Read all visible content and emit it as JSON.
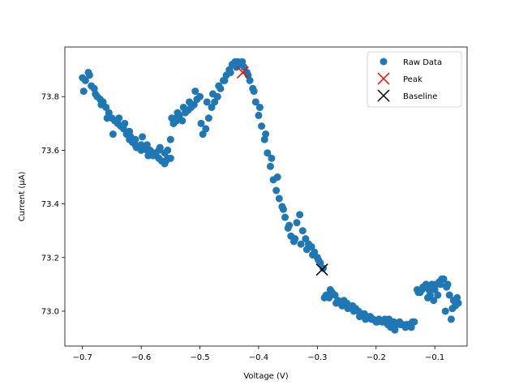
{
  "colors": {
    "raw": "#1f77b4",
    "peak": "#ff0000",
    "baseline": "#000000"
  },
  "chart_data": {
    "type": "scatter",
    "xlabel": "Voltage (V)",
    "ylabel": "Current (µA)",
    "xlim": [
      -0.73,
      -0.045
    ],
    "ylim": [
      72.87,
      73.985
    ],
    "xticks": [
      -0.7,
      -0.6,
      -0.5,
      -0.4,
      -0.3,
      -0.2,
      -0.1
    ],
    "xtick_labels": [
      "−0.7",
      "−0.6",
      "−0.5",
      "−0.4",
      "−0.3",
      "−0.2",
      "−0.1"
    ],
    "yticks": [
      73.0,
      73.2,
      73.4,
      73.6,
      73.8
    ],
    "ytick_labels": [
      "73.0",
      "73.2",
      "73.4",
      "73.6",
      "73.8"
    ],
    "grid": false,
    "legend_position": "top-right",
    "series": [
      {
        "name": "Raw Data",
        "marker": "circle",
        "x": [
          -0.7,
          -0.695,
          -0.69,
          -0.685,
          -0.68,
          -0.675,
          -0.67,
          -0.665,
          -0.66,
          -0.655,
          -0.65,
          -0.645,
          -0.64,
          -0.635,
          -0.63,
          -0.625,
          -0.62,
          -0.615,
          -0.61,
          -0.605,
          -0.6,
          -0.595,
          -0.59,
          -0.585,
          -0.58,
          -0.575,
          -0.57,
          -0.565,
          -0.56,
          -0.555,
          -0.55,
          -0.545,
          -0.54,
          -0.535,
          -0.53,
          -0.525,
          -0.52,
          -0.515,
          -0.51,
          -0.505,
          -0.5,
          -0.495,
          -0.49,
          -0.485,
          -0.48,
          -0.475,
          -0.47,
          -0.465,
          -0.46,
          -0.455,
          -0.45,
          -0.445,
          -0.44,
          -0.435,
          -0.43,
          -0.425,
          -0.42,
          -0.415,
          -0.41,
          -0.405,
          -0.4,
          -0.395,
          -0.39,
          -0.385,
          -0.38,
          -0.375,
          -0.37,
          -0.365,
          -0.36,
          -0.355,
          -0.35,
          -0.345,
          -0.34,
          -0.335,
          -0.33,
          -0.325,
          -0.32,
          -0.315,
          -0.31,
          -0.305,
          -0.3,
          -0.295,
          -0.29,
          -0.285,
          -0.28,
          -0.275,
          -0.27,
          -0.265,
          -0.26,
          -0.255,
          -0.25,
          -0.245,
          -0.24,
          -0.235,
          -0.23,
          -0.225,
          -0.22,
          -0.215,
          -0.21,
          -0.205,
          -0.2,
          -0.195,
          -0.19,
          -0.185,
          -0.18,
          -0.175,
          -0.17,
          -0.165,
          -0.16,
          -0.155,
          -0.15,
          -0.145,
          -0.14,
          -0.135,
          -0.13,
          -0.125,
          -0.12,
          -0.115,
          -0.11,
          -0.105,
          -0.1,
          -0.095,
          -0.09,
          -0.085,
          -0.08,
          -0.075,
          -0.07,
          -0.065,
          -0.06,
          -0.698,
          -0.688,
          -0.678,
          -0.668,
          -0.658,
          -0.648,
          -0.638,
          -0.628,
          -0.618,
          -0.608,
          -0.598,
          -0.588,
          -0.578,
          -0.568,
          -0.558,
          -0.548,
          -0.538,
          -0.528,
          -0.518,
          -0.508,
          -0.498,
          -0.488,
          -0.478,
          -0.468,
          -0.458,
          -0.448,
          -0.438,
          -0.428,
          -0.418,
          -0.408,
          -0.398,
          -0.388,
          -0.378,
          -0.368,
          -0.358,
          -0.348,
          -0.338,
          -0.328,
          -0.318,
          -0.308,
          -0.298,
          -0.288,
          -0.278,
          -0.268,
          -0.258,
          -0.248,
          -0.238,
          -0.228,
          -0.218,
          -0.208,
          -0.198,
          -0.188,
          -0.178,
          -0.168,
          -0.158,
          -0.148,
          -0.138,
          -0.128,
          -0.118,
          -0.108,
          -0.098,
          -0.088,
          -0.078,
          -0.068,
          -0.062,
          -0.072,
          -0.082,
          -0.092,
          -0.102,
          -0.112,
          -0.122,
          -0.555,
          -0.56,
          -0.55,
          -0.545,
          -0.54,
          -0.6,
          -0.61,
          -0.62,
          -0.59,
          -0.58,
          -0.57
        ],
        "y": [
          73.87,
          73.86,
          73.89,
          73.84,
          73.83,
          73.8,
          73.79,
          73.78,
          73.76,
          73.74,
          73.72,
          73.71,
          73.7,
          73.69,
          73.68,
          73.66,
          73.64,
          73.63,
          73.62,
          73.61,
          73.6,
          73.61,
          73.62,
          73.6,
          73.59,
          73.58,
          73.57,
          73.56,
          73.55,
          73.57,
          73.64,
          73.7,
          73.72,
          73.73,
          73.71,
          73.74,
          73.75,
          73.76,
          73.77,
          73.79,
          73.8,
          73.66,
          73.68,
          73.72,
          73.76,
          73.78,
          73.8,
          73.83,
          73.86,
          73.88,
          73.9,
          73.92,
          73.93,
          73.93,
          73.92,
          73.91,
          73.89,
          73.86,
          73.83,
          73.78,
          73.73,
          73.69,
          73.64,
          73.59,
          73.54,
          73.49,
          73.45,
          73.42,
          73.39,
          73.35,
          73.31,
          73.28,
          73.26,
          73.33,
          73.36,
          73.3,
          73.27,
          73.25,
          73.24,
          73.22,
          73.2,
          73.18,
          73.16,
          73.06,
          73.05,
          73.07,
          73.06,
          73.04,
          73.03,
          73.04,
          73.03,
          73.02,
          73.02,
          73.01,
          73.0,
          72.99,
          72.99,
          72.98,
          72.98,
          72.97,
          72.96,
          72.97,
          72.96,
          72.97,
          72.95,
          72.94,
          72.96,
          72.95,
          72.96,
          72.95,
          72.94,
          72.95,
          72.94,
          72.96,
          73.08,
          73.07,
          73.09,
          73.1,
          73.08,
          73.1,
          73.08,
          73.06,
          73.1,
          73.12,
          73.09,
          73.06,
          73.01,
          73.02,
          73.03,
          73.82,
          73.88,
          73.81,
          73.77,
          73.72,
          73.66,
          73.72,
          73.7,
          73.65,
          73.61,
          73.65,
          73.58,
          73.59,
          73.61,
          73.56,
          73.72,
          73.74,
          73.76,
          73.78,
          73.82,
          73.7,
          73.78,
          73.81,
          73.84,
          73.86,
          73.89,
          73.91,
          73.93,
          73.88,
          73.82,
          73.76,
          73.66,
          73.57,
          73.5,
          73.38,
          73.32,
          73.27,
          73.25,
          73.23,
          73.21,
          73.19,
          73.05,
          73.08,
          73.03,
          73.02,
          73.01,
          73.0,
          72.98,
          72.97,
          72.97,
          72.96,
          72.96,
          72.97,
          72.93,
          72.95,
          72.95,
          72.96,
          73.07,
          73.09,
          73.06,
          73.1,
          73.12,
          73.1,
          73.04,
          73.05,
          72.97,
          73.0,
          73.11,
          73.04,
          73.05,
          73.08,
          73.6,
          73.59,
          73.57,
          73.7,
          73.71,
          73.62,
          73.64,
          73.67,
          73.6,
          73.58,
          73.6
        ]
      },
      {
        "name": "Peak",
        "marker": "x",
        "x": [
          -0.427
        ],
        "y": [
          73.89
        ]
      },
      {
        "name": "Baseline",
        "marker": "x",
        "x": [
          -0.292
        ],
        "y": [
          73.155
        ]
      }
    ]
  }
}
